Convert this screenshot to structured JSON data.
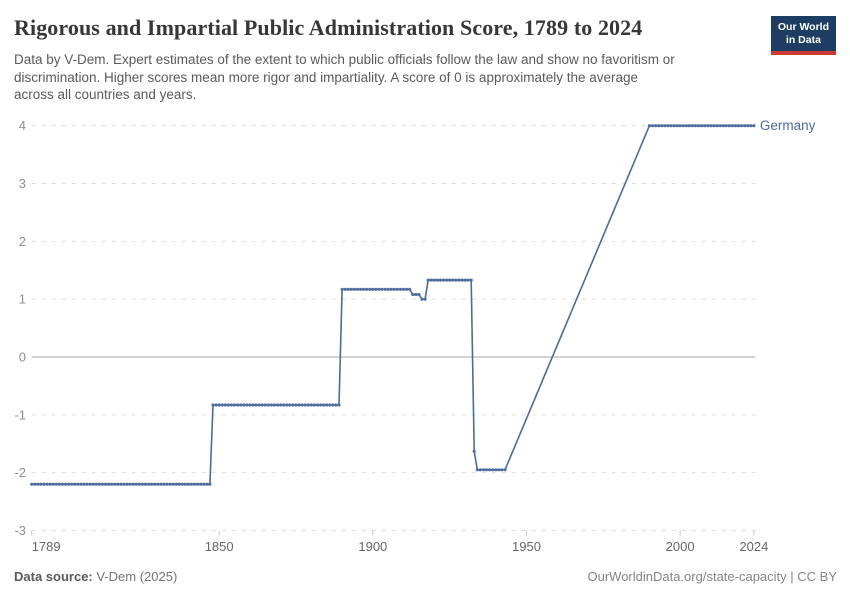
{
  "header": {
    "title": "Rigorous and Impartial Public Administration Score, 1789 to 2024",
    "subtitle_lines": [
      "Data by V-Dem. Expert estimates of the extent to which public officials follow the law and show no favoritism or",
      "discrimination. Higher scores mean more rigor and impartiality. A score of 0 is approximately the average",
      "across all countries and years."
    ],
    "logo": {
      "line1": "Our World",
      "line2": "in Data"
    }
  },
  "footer": {
    "source_label": "Data source:",
    "source_value": " V-Dem (2025)",
    "credit": "OurWorldinData.org/state-capacity | CC BY"
  },
  "colors": {
    "line": "#4C6A9C",
    "entity_label": "#4C6A9C",
    "grid": "#dcdcdc",
    "zero_line": "#a6a6a6",
    "axis_tick": "#c9c9c9",
    "y_label": "#8f8f8f",
    "x_label": "#666666",
    "logo_navy": "#1d3d63",
    "logo_red": "#cc3b33"
  },
  "chart_data": {
    "type": "line",
    "title": "Rigorous and Impartial Public Administration Score, 1789 to 2024",
    "xlabel": "",
    "ylabel": "",
    "xlim": [
      1789,
      2024
    ],
    "ylim": [
      -3,
      4
    ],
    "grid": "dashed-horizontal",
    "legend_position": "end-of-line-label",
    "x_ticks": [
      1789,
      1850,
      1900,
      1950,
      2000,
      2024
    ],
    "y_ticks": [
      4,
      3,
      2,
      1,
      0,
      -1,
      -2,
      -3
    ],
    "series": [
      {
        "name": "Germany",
        "points": [
          [
            1789,
            -2.2
          ],
          [
            1847,
            -2.2
          ],
          [
            1848,
            -0.83
          ],
          [
            1889,
            -0.83
          ],
          [
            1890,
            1.17
          ],
          [
            1912,
            1.17
          ],
          [
            1913,
            1.08
          ],
          [
            1915,
            1.08
          ],
          [
            1916,
            1.0
          ],
          [
            1917,
            1.0
          ],
          [
            1918,
            1.33
          ],
          [
            1932,
            1.33
          ],
          [
            1933,
            -1.63
          ],
          [
            1934,
            -1.95
          ],
          [
            1943,
            -1.95
          ],
          [
            1990,
            4.0
          ],
          [
            2024,
            4.0
          ]
        ],
        "marker_ranges": [
          [
            1789,
            1943
          ],
          [
            1990,
            2024
          ]
        ],
        "note": "Straight interpolation (no yearly markers) between 1943 and 1990"
      }
    ]
  }
}
